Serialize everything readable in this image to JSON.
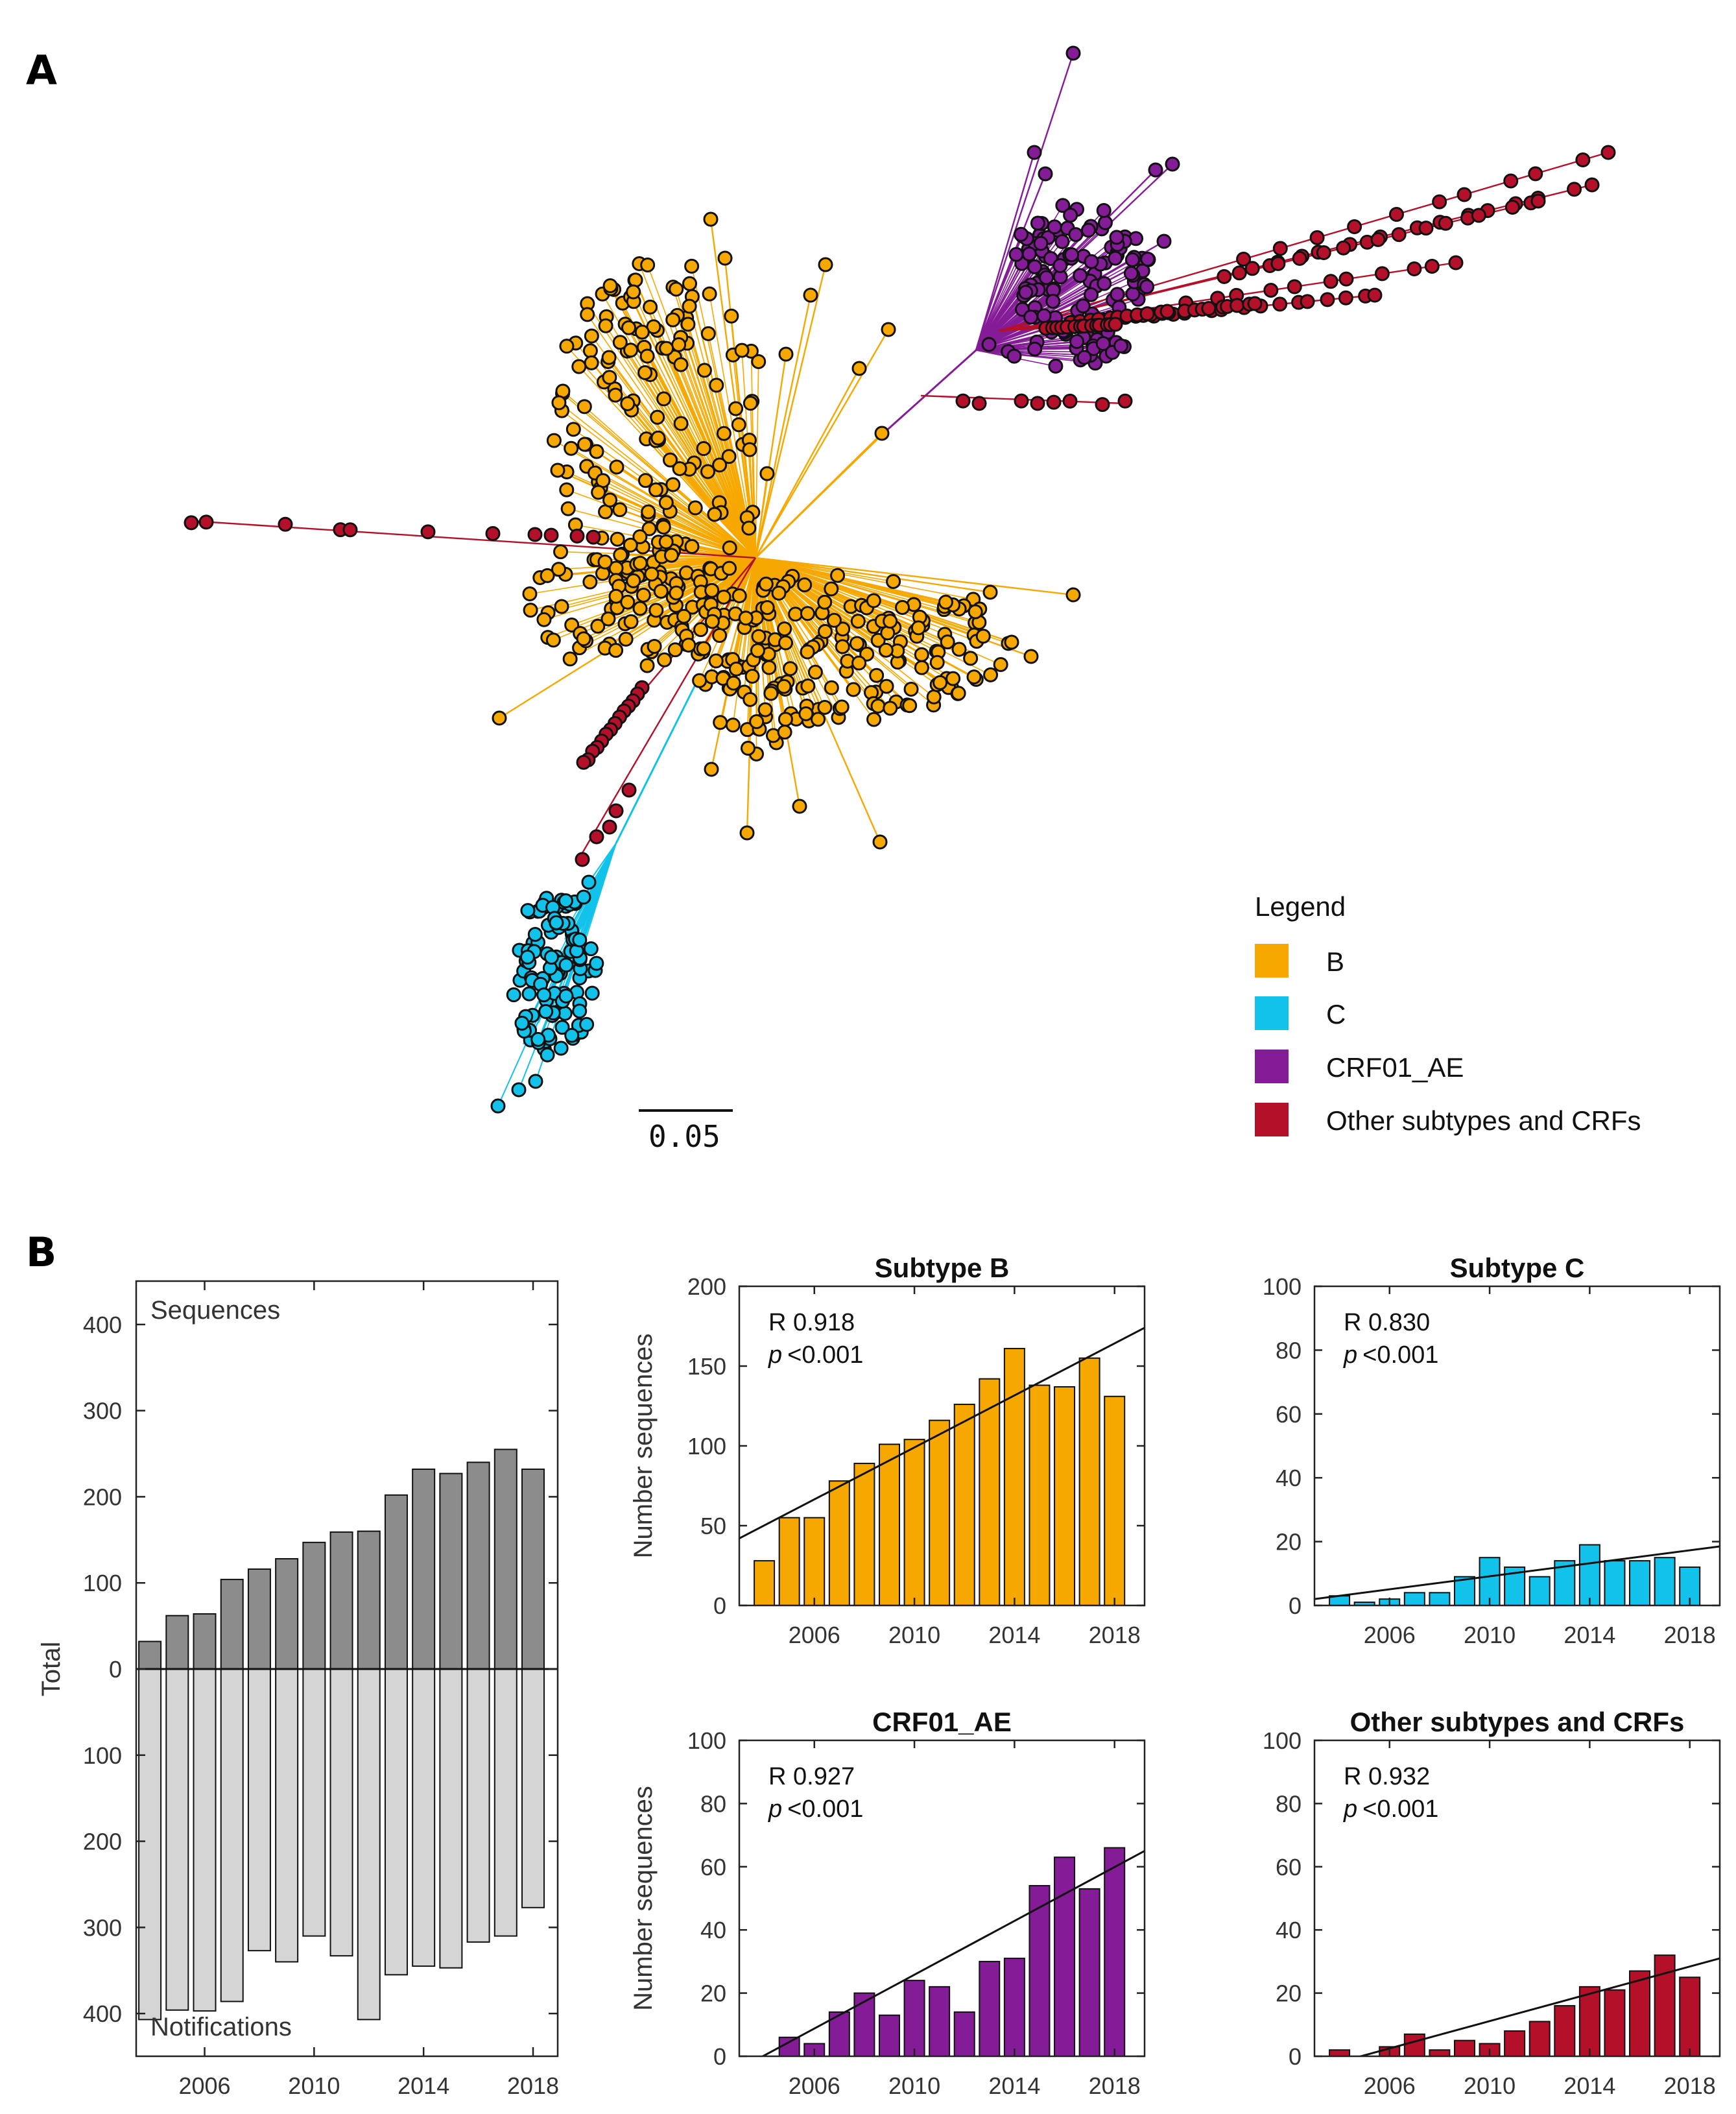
{
  "panels": {
    "a_label": "A",
    "b_label": "B"
  },
  "tree": {
    "scale_label": "0.05",
    "colors": {
      "B": "#f7a800",
      "C": "#12c2ea",
      "CRF01_AE": "#851c97",
      "Other": "#b5102a"
    }
  },
  "legend": {
    "title": "Legend",
    "items": [
      {
        "label": "B",
        "color": "#f7a800"
      },
      {
        "label": "C",
        "color": "#12c2ea"
      },
      {
        "label": "CRF01_AE",
        "color": "#851c97"
      },
      {
        "label": "Other subtypes and CRFs",
        "color": "#b5102a"
      }
    ]
  },
  "chart_data": [
    {
      "type": "bar",
      "id": "totals",
      "title": "",
      "ylabel": "Total",
      "x": [
        2004,
        2005,
        2006,
        2007,
        2008,
        2009,
        2010,
        2011,
        2012,
        2013,
        2014,
        2015,
        2016,
        2017,
        2018
      ],
      "xticks": [
        "2006",
        "2010",
        "2014",
        "2018"
      ],
      "yticks": [
        "400",
        "300",
        "200",
        "100",
        "0",
        "100",
        "200",
        "300",
        "400"
      ],
      "ylim": [
        -450,
        450
      ],
      "series": [
        {
          "name": "Sequences",
          "color": "#8c8c8c",
          "values": [
            32,
            62,
            64,
            104,
            116,
            128,
            147,
            159,
            160,
            202,
            232,
            227,
            240,
            255,
            232
          ]
        },
        {
          "name": "Notifications",
          "color": "#d5d5d5",
          "values": [
            407,
            396,
            397,
            386,
            327,
            340,
            310,
            333,
            407,
            355,
            345,
            347,
            317,
            310,
            277
          ]
        }
      ]
    },
    {
      "type": "bar",
      "id": "subB",
      "title": "Subtype B",
      "ylabel": "Number sequences",
      "color": "#f7a800",
      "ylim": [
        0,
        200
      ],
      "yticks": [
        "0",
        "50",
        "100",
        "150",
        "200"
      ],
      "xticks": [
        "2006",
        "2010",
        "2014",
        "2018"
      ],
      "x": [
        2004,
        2005,
        2006,
        2007,
        2008,
        2009,
        2010,
        2011,
        2012,
        2013,
        2014,
        2015,
        2016,
        2017,
        2018
      ],
      "values": [
        28,
        55,
        55,
        78,
        89,
        101,
        104,
        116,
        126,
        142,
        161,
        138,
        137,
        155,
        131
      ],
      "fit": {
        "y_start": 42,
        "y_end": 174
      },
      "r_text": "R 0.918",
      "p_text": "<0.001"
    },
    {
      "type": "bar",
      "id": "subC",
      "title": "Subtype C",
      "ylabel": "",
      "color": "#12c2ea",
      "ylim": [
        0,
        100
      ],
      "yticks": [
        "0",
        "20",
        "40",
        "60",
        "80",
        "100"
      ],
      "xticks": [
        "2006",
        "2010",
        "2014",
        "2018"
      ],
      "x": [
        2004,
        2005,
        2006,
        2007,
        2008,
        2009,
        2010,
        2011,
        2012,
        2013,
        2014,
        2015,
        2016,
        2017,
        2018
      ],
      "values": [
        3,
        1,
        2,
        4,
        4,
        9,
        15,
        12,
        9,
        14,
        19,
        14,
        14,
        15,
        12
      ],
      "fit": {
        "y_start": 2,
        "y_end": 18.5
      },
      "r_text": "R 0.830",
      "p_text": "<0.001"
    },
    {
      "type": "bar",
      "id": "crf01",
      "title": "CRF01_AE",
      "ylabel": "Number sequences",
      "color": "#851c97",
      "ylim": [
        0,
        100
      ],
      "yticks": [
        "0",
        "20",
        "40",
        "60",
        "80",
        "100"
      ],
      "xticks": [
        "2006",
        "2010",
        "2014",
        "2018"
      ],
      "x": [
        2004,
        2005,
        2006,
        2007,
        2008,
        2009,
        2010,
        2011,
        2012,
        2013,
        2014,
        2015,
        2016,
        2017,
        2018
      ],
      "values": [
        0,
        6,
        4,
        14,
        20,
        13,
        24,
        22,
        14,
        30,
        31,
        54,
        63,
        53,
        66
      ],
      "fit": {
        "y_start": -4,
        "y_end": 65
      },
      "r_text": "R 0.927",
      "p_text": "<0.001"
    },
    {
      "type": "bar",
      "id": "other",
      "title": "Other subtypes and CRFs",
      "ylabel": "",
      "color": "#b5102a",
      "ylim": [
        0,
        100
      ],
      "yticks": [
        "0",
        "20",
        "40",
        "60",
        "80",
        "100"
      ],
      "xticks": [
        "2006",
        "2010",
        "2014",
        "2018"
      ],
      "x": [
        2004,
        2005,
        2006,
        2007,
        2008,
        2009,
        2010,
        2011,
        2012,
        2013,
        2014,
        2015,
        2016,
        2017,
        2018
      ],
      "values": [
        2,
        0,
        3,
        7,
        2,
        5,
        4,
        8,
        11,
        16,
        22,
        21,
        27,
        32,
        25
      ],
      "fit": {
        "y_start": -4,
        "y_end": 31
      },
      "r_text": "R 0.932",
      "p_text": "<0.001"
    }
  ],
  "labels": {
    "sequences": "Sequences",
    "notifications": "Notifications",
    "p_italic": "p"
  }
}
